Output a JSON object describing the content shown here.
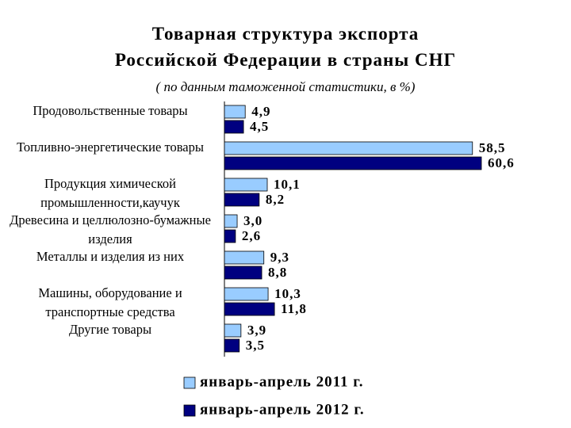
{
  "chart_data": {
    "type": "bar",
    "orientation": "horizontal",
    "title": [
      "Товарная структура экспорта",
      "Российской Федерации в страны СНГ"
    ],
    "subtitle": "( по данным таможенной статистики, в %)",
    "categories": [
      "Продовольственные товары",
      "Топливно-энергетические товары",
      "Продукция химической промышленности,каучук",
      "Древесина и целлюлозно-бумажные изделия",
      "Металлы и изделия из них",
      "Машины, оборудование и транспортные средства",
      "Другие товары"
    ],
    "series": [
      {
        "name": "январь-апрель 2011 г.",
        "color": "#99ccff",
        "values": [
          4.9,
          58.5,
          10.1,
          3.0,
          9.3,
          10.3,
          3.9
        ],
        "value_labels": [
          "4,9",
          "58,5",
          "10,1",
          "3,0",
          "9,3",
          "10,3",
          "3,9"
        ]
      },
      {
        "name": "январь-апрель 2012 г.",
        "color": "#000080",
        "values": [
          4.5,
          60.6,
          8.2,
          2.6,
          8.8,
          11.8,
          3.5
        ],
        "value_labels": [
          "4,5",
          "60,6",
          "8,2",
          "2,6",
          "8,8",
          "11,8",
          "3,5"
        ]
      }
    ]
  }
}
